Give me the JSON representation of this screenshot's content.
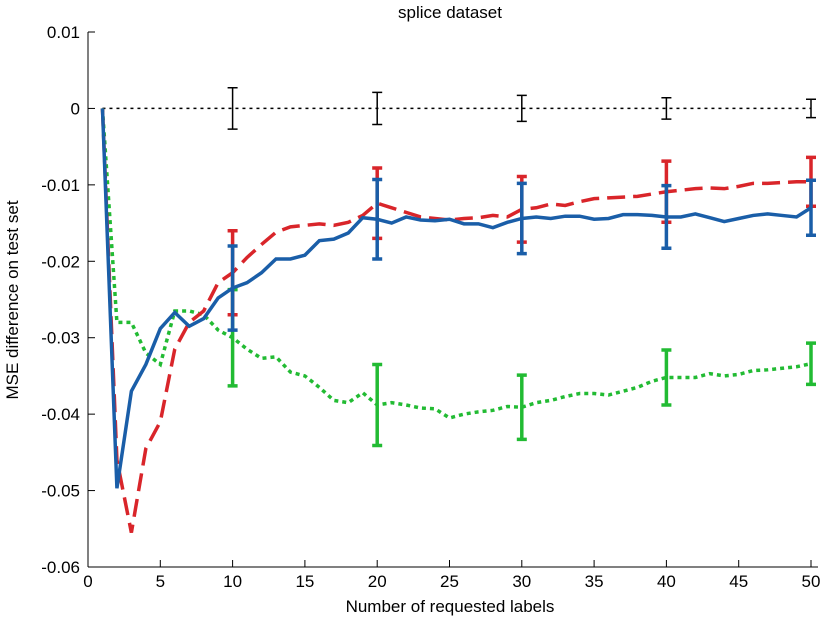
{
  "chart_data": {
    "type": "line",
    "title": "splice dataset",
    "x_label": "Number of requested labels",
    "y_label": "MSE difference on test set",
    "x": [
      1,
      2,
      3,
      4,
      5,
      6,
      7,
      8,
      9,
      10,
      11,
      12,
      13,
      14,
      15,
      16,
      17,
      18,
      19,
      20,
      21,
      22,
      23,
      24,
      25,
      26,
      27,
      28,
      29,
      30,
      31,
      32,
      33,
      34,
      35,
      36,
      37,
      38,
      39,
      40,
      41,
      42,
      43,
      44,
      45,
      46,
      47,
      48,
      49,
      50
    ],
    "xlim": [
      0,
      50
    ],
    "xticks": [
      0,
      5,
      10,
      15,
      20,
      25,
      30,
      35,
      40,
      45,
      50
    ],
    "ylim": [
      -0.06,
      0.01
    ],
    "yticks": [
      -0.06,
      -0.05,
      -0.04,
      -0.03,
      -0.02,
      -0.01,
      0,
      0.01
    ],
    "series": [
      {
        "color": "#000000",
        "style": "dotted",
        "width": 1.5,
        "values": [
          0,
          0,
          0,
          0,
          0,
          0,
          0,
          0,
          0,
          0,
          0,
          0,
          0,
          0,
          0,
          0,
          0,
          0,
          0,
          0,
          0,
          0,
          0,
          0,
          0,
          0,
          0,
          0,
          0,
          0,
          0,
          0,
          0,
          0,
          0,
          0,
          0,
          0,
          0,
          0,
          0,
          0,
          0,
          0,
          0,
          0,
          0,
          0,
          0,
          0
        ],
        "errors": [
          null,
          null,
          null,
          null,
          null,
          null,
          null,
          null,
          null,
          0.0027,
          null,
          null,
          null,
          null,
          null,
          null,
          null,
          null,
          null,
          0.0021,
          null,
          null,
          null,
          null,
          null,
          null,
          null,
          null,
          null,
          0.0017,
          null,
          null,
          null,
          null,
          null,
          null,
          null,
          null,
          null,
          0.0014,
          null,
          null,
          null,
          null,
          null,
          null,
          null,
          null,
          null,
          0.0012
        ]
      },
      {
        "color": "#22bb33",
        "style": "dotted",
        "width": 3.5,
        "values": [
          0,
          -0.028,
          -0.028,
          -0.032,
          -0.0335,
          -0.0265,
          -0.0265,
          -0.027,
          -0.029,
          -0.03,
          -0.0315,
          -0.0327,
          -0.0325,
          -0.0345,
          -0.035,
          -0.0365,
          -0.0382,
          -0.0385,
          -0.0372,
          -0.0388,
          -0.0385,
          -0.0388,
          -0.0392,
          -0.0393,
          -0.0405,
          -0.04,
          -0.0397,
          -0.0395,
          -0.039,
          -0.0391,
          -0.0385,
          -0.0382,
          -0.0377,
          -0.0373,
          -0.0373,
          -0.0375,
          -0.037,
          -0.0365,
          -0.0357,
          -0.0352,
          -0.0352,
          -0.0352,
          -0.0347,
          -0.035,
          -0.0348,
          -0.0343,
          -0.0342,
          -0.034,
          -0.0338,
          -0.0334
        ],
        "errors": [
          null,
          null,
          null,
          null,
          null,
          null,
          null,
          null,
          null,
          0.0063,
          null,
          null,
          null,
          null,
          null,
          null,
          null,
          null,
          null,
          0.0053,
          null,
          null,
          null,
          null,
          null,
          null,
          null,
          null,
          null,
          0.0042,
          null,
          null,
          null,
          null,
          null,
          null,
          null,
          null,
          null,
          0.0036,
          null,
          null,
          null,
          null,
          null,
          null,
          null,
          null,
          null,
          0.0027
        ]
      },
      {
        "color": "#d9252a",
        "style": "dashed",
        "width": 3.5,
        "values": [
          0,
          -0.046,
          -0.0555,
          -0.0445,
          -0.041,
          -0.0315,
          -0.028,
          -0.0265,
          -0.0228,
          -0.0215,
          -0.0195,
          -0.0178,
          -0.0162,
          -0.0155,
          -0.0153,
          -0.0151,
          -0.0153,
          -0.0149,
          -0.014,
          -0.0124,
          -0.013,
          -0.0136,
          -0.0142,
          -0.0144,
          -0.0146,
          -0.0144,
          -0.0143,
          -0.014,
          -0.0142,
          -0.0132,
          -0.013,
          -0.0125,
          -0.0127,
          -0.0122,
          -0.0118,
          -0.0117,
          -0.0116,
          -0.0115,
          -0.0112,
          -0.0109,
          -0.0107,
          -0.0105,
          -0.0104,
          -0.0105,
          -0.0102,
          -0.0098,
          -0.0098,
          -0.0097,
          -0.0096,
          -0.0096
        ],
        "errors": [
          null,
          null,
          null,
          null,
          null,
          null,
          null,
          null,
          null,
          0.0055,
          null,
          null,
          null,
          null,
          null,
          null,
          null,
          null,
          null,
          0.0046,
          null,
          null,
          null,
          null,
          null,
          null,
          null,
          null,
          null,
          0.0043,
          null,
          null,
          null,
          null,
          null,
          null,
          null,
          null,
          null,
          0.004,
          null,
          null,
          null,
          null,
          null,
          null,
          null,
          null,
          null,
          0.0032
        ]
      },
      {
        "color": "#1a5ea8",
        "style": "solid",
        "width": 3.5,
        "values": [
          0,
          -0.0497,
          -0.037,
          -0.0335,
          -0.0288,
          -0.0267,
          -0.0285,
          -0.0275,
          -0.0248,
          -0.0235,
          -0.0228,
          -0.0215,
          -0.0197,
          -0.0197,
          -0.0192,
          -0.0173,
          -0.0171,
          -0.0163,
          -0.0143,
          -0.0145,
          -0.015,
          -0.0142,
          -0.0146,
          -0.0147,
          -0.0145,
          -0.0151,
          -0.0151,
          -0.0156,
          -0.0149,
          -0.0144,
          -0.0142,
          -0.0144,
          -0.0141,
          -0.0141,
          -0.0145,
          -0.0144,
          -0.0139,
          -0.0139,
          -0.014,
          -0.0142,
          -0.0142,
          -0.0138,
          -0.0143,
          -0.0148,
          -0.0144,
          -0.014,
          -0.0138,
          -0.014,
          -0.0142,
          -0.013
        ],
        "errors": [
          null,
          null,
          null,
          null,
          null,
          null,
          null,
          null,
          null,
          0.0055,
          null,
          null,
          null,
          null,
          null,
          null,
          null,
          null,
          null,
          0.0052,
          null,
          null,
          null,
          null,
          null,
          null,
          null,
          null,
          null,
          0.0046,
          null,
          null,
          null,
          null,
          null,
          null,
          null,
          null,
          null,
          0.0041,
          null,
          null,
          null,
          null,
          null,
          null,
          null,
          null,
          null,
          0.0036
        ]
      }
    ]
  }
}
